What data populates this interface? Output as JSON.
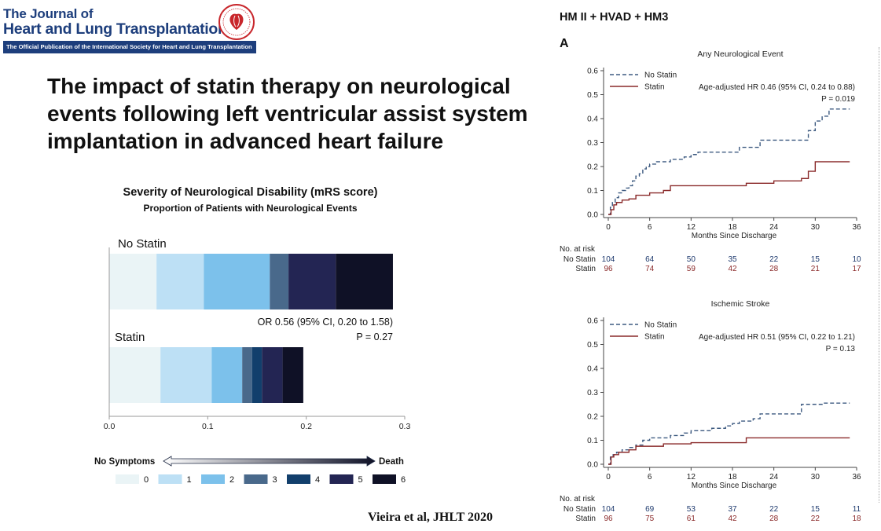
{
  "journal": {
    "name_line1": "The Journal of",
    "name_line2": "Heart and Lung Transplantation",
    "tagline": "The Official Publication of the International Society for Heart and Lung Transplantation",
    "brand_color": "#1d3e7c",
    "seal_color": "#c8262b"
  },
  "title": "The impact of statin therapy on neurological events following left ventricular assist system implantation in advanced heart failure",
  "citation": "Vieira et al, JHLT 2020",
  "right_header": "HM II + HVAD + HM3",
  "panel_letter": "A",
  "chart_data": [
    {
      "type": "bar",
      "orientation": "horizontal-stacked",
      "title": "Severity of Neurological Disability (mRS score)",
      "subtitle": "Proportion of Patients with Neurological Events",
      "xlim": [
        0,
        0.3
      ],
      "xticks": [
        "0.0",
        "0.1",
        "0.2",
        "0.3"
      ],
      "categories": [
        "No Statin",
        "Statin"
      ],
      "stack_labels": [
        "0",
        "1",
        "2",
        "3",
        "4",
        "5",
        "6"
      ],
      "stack_colors": [
        "#eaf4f6",
        "#bde0f5",
        "#7cc1eb",
        "#49698b",
        "#123f6c",
        "#232553",
        "#0f1126"
      ],
      "segments": {
        "No Statin": [
          0.048,
          0.048,
          0.067,
          0.019,
          0.0,
          0.048,
          0.058
        ],
        "Statin": [
          0.052,
          0.052,
          0.031,
          0.01,
          0.01,
          0.021,
          0.021
        ]
      },
      "annotation_lines": [
        "OR 0.56 (95% CI, 0.20 to 1.58)",
        "P = 0.27"
      ],
      "scale_left_label": "No Symptoms",
      "scale_right_label": "Death"
    },
    {
      "type": "line",
      "step": true,
      "title": "Any Neurological Event",
      "xlabel": "Months Since Discharge",
      "xlim": [
        0,
        36
      ],
      "ylim": [
        0,
        0.6
      ],
      "xticks": [
        "0",
        "6",
        "12",
        "18",
        "24",
        "30",
        "36"
      ],
      "yticks": [
        "0.0",
        "0.1",
        "0.2",
        "0.3",
        "0.4",
        "0.5",
        "0.6"
      ],
      "annotation_lines": [
        "Age-adjusted HR 0.46 (95% CI, 0.24 to 0.88)",
        "P = 0.019"
      ],
      "series": [
        {
          "name": "No Statin",
          "color": "#3d5a80",
          "dash": true,
          "x": [
            0,
            0.3,
            0.6,
            1,
            1.5,
            2,
            2.5,
            3,
            3.5,
            4,
            4.5,
            5,
            5.5,
            6,
            7,
            8,
            9,
            11,
            12,
            13,
            16,
            18,
            19,
            21,
            22,
            25,
            29,
            30,
            31,
            32,
            35
          ],
          "y": [
            0,
            0.03,
            0.05,
            0.07,
            0.09,
            0.1,
            0.11,
            0.12,
            0.14,
            0.16,
            0.17,
            0.19,
            0.2,
            0.21,
            0.22,
            0.22,
            0.23,
            0.24,
            0.25,
            0.26,
            0.26,
            0.26,
            0.28,
            0.28,
            0.31,
            0.31,
            0.35,
            0.39,
            0.41,
            0.44,
            0.44
          ]
        },
        {
          "name": "Statin",
          "color": "#8a2a2a",
          "dash": false,
          "x": [
            0,
            0.4,
            0.8,
            1.2,
            2,
            3,
            4,
            6,
            8,
            9,
            12,
            16,
            20,
            24,
            28,
            29,
            30,
            31,
            35
          ],
          "y": [
            0,
            0.02,
            0.04,
            0.05,
            0.06,
            0.065,
            0.08,
            0.09,
            0.1,
            0.12,
            0.12,
            0.12,
            0.13,
            0.14,
            0.15,
            0.18,
            0.22,
            0.22,
            0.22
          ]
        }
      ],
      "risk_table": {
        "header": "No. at risk",
        "rows": [
          {
            "label": "No Statin",
            "color": "#1e3a6e",
            "values": [
              "104",
              "64",
              "50",
              "35",
              "22",
              "15",
              "10"
            ]
          },
          {
            "label": "Statin",
            "color": "#8a2a2a",
            "values": [
              "96",
              "74",
              "59",
              "42",
              "28",
              "21",
              "17"
            ]
          }
        ]
      }
    },
    {
      "type": "line",
      "step": true,
      "title": "Ischemic Stroke",
      "xlabel": "Months Since Discharge",
      "xlim": [
        0,
        36
      ],
      "ylim": [
        0,
        0.6
      ],
      "xticks": [
        "0",
        "6",
        "12",
        "18",
        "24",
        "30",
        "36"
      ],
      "yticks": [
        "0.0",
        "0.1",
        "0.2",
        "0.3",
        "0.4",
        "0.5",
        "0.6"
      ],
      "annotation_lines": [
        "Age-adjusted HR 0.51 (95% CI, 0.22 to 1.21)",
        "P = 0.13"
      ],
      "series": [
        {
          "name": "No Statin",
          "color": "#3d5a80",
          "dash": true,
          "x": [
            0,
            0.3,
            0.7,
            1.2,
            2,
            3,
            4,
            5,
            6,
            9,
            11,
            12,
            15,
            17,
            18,
            19,
            21,
            22,
            24,
            28,
            31,
            35
          ],
          "y": [
            0,
            0.03,
            0.04,
            0.05,
            0.06,
            0.07,
            0.08,
            0.1,
            0.11,
            0.12,
            0.13,
            0.14,
            0.15,
            0.16,
            0.17,
            0.18,
            0.19,
            0.21,
            0.21,
            0.25,
            0.255,
            0.255
          ]
        },
        {
          "name": "Statin",
          "color": "#8a2a2a",
          "dash": false,
          "x": [
            0,
            0.4,
            0.8,
            1.5,
            3,
            4,
            8,
            12,
            16,
            19,
            20,
            24,
            30,
            35
          ],
          "y": [
            0,
            0.03,
            0.04,
            0.05,
            0.06,
            0.075,
            0.085,
            0.09,
            0.09,
            0.09,
            0.11,
            0.11,
            0.11,
            0.11
          ]
        }
      ],
      "risk_table": {
        "header": "No. at risk",
        "rows": [
          {
            "label": "No Statin",
            "color": "#1e3a6e",
            "values": [
              "104",
              "69",
              "53",
              "37",
              "22",
              "15",
              "11"
            ]
          },
          {
            "label": "Statin",
            "color": "#8a2a2a",
            "values": [
              "96",
              "75",
              "61",
              "42",
              "28",
              "22",
              "18"
            ]
          }
        ]
      }
    }
  ]
}
